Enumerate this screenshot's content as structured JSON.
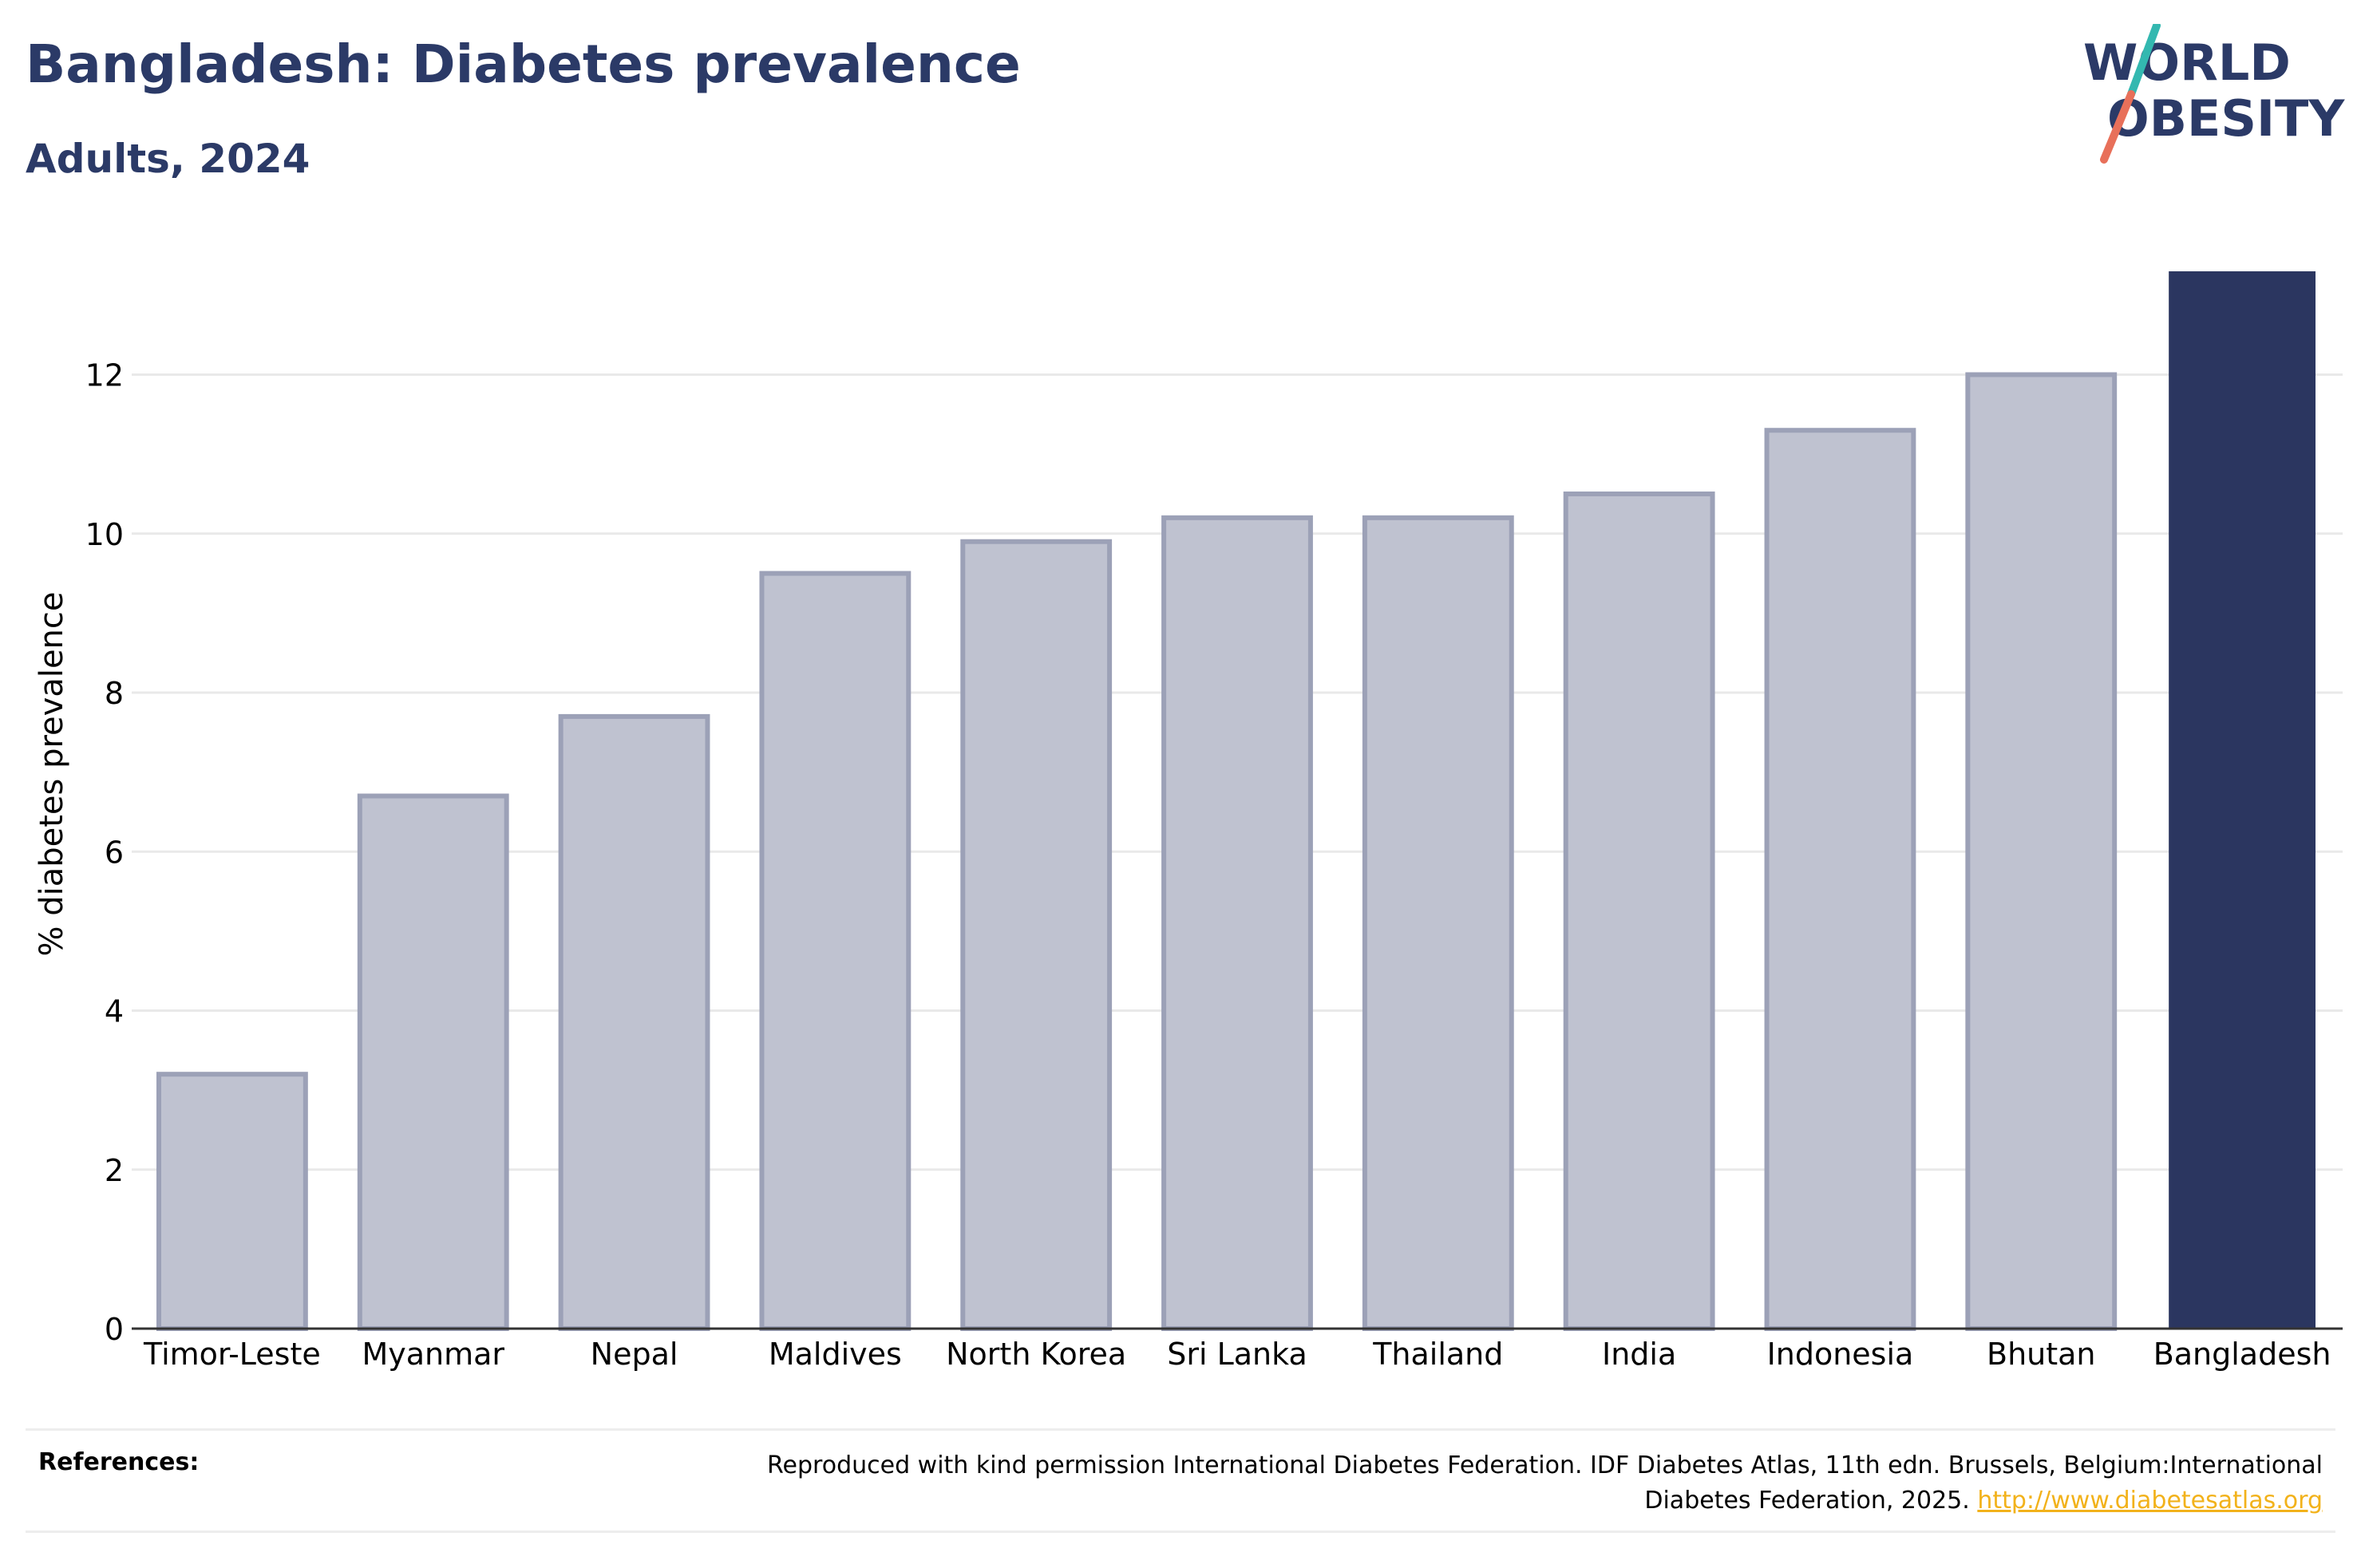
{
  "header": {
    "title": "Bangladesh: Diabetes prevalence",
    "subtitle": "Adults, 2024"
  },
  "logo": {
    "line1": "WORLD",
    "line2": "OBESITY",
    "color_text": "#2b3a67",
    "color_slash_top": "#33b8b0",
    "color_slash_bottom": "#e8705a"
  },
  "chart_data": {
    "type": "bar",
    "categories": [
      "Timor-Leste",
      "Myanmar",
      "Nepal",
      "Maldives",
      "North Korea",
      "Sri Lanka",
      "Thailand",
      "India",
      "Indonesia",
      "Bhutan",
      "Bangladesh"
    ],
    "values": [
      3.2,
      6.7,
      7.7,
      9.5,
      9.9,
      10.2,
      10.2,
      10.5,
      11.3,
      12.0,
      13.3
    ],
    "highlight": "Bangladesh",
    "ylabel": "% diabetes prevalence",
    "xlabel": "",
    "ylim": [
      0,
      13.3
    ],
    "yticks": [
      0,
      2,
      4,
      6,
      8,
      10,
      12
    ],
    "grid": true,
    "colors": {
      "bar": "#bfc2d0",
      "bar_border": "#9ca1b7",
      "highlight": "#2b3660",
      "grid": "#e9e9e9",
      "axis": "#333333"
    }
  },
  "references": {
    "label": "References:",
    "text": "Reproduced with kind permission International Diabetes Federation. IDF Diabetes Atlas, 11th edn. Brussels, Belgium:International Diabetes Federation, 2025.",
    "link_text": "http://www.diabetesatlas.org"
  }
}
